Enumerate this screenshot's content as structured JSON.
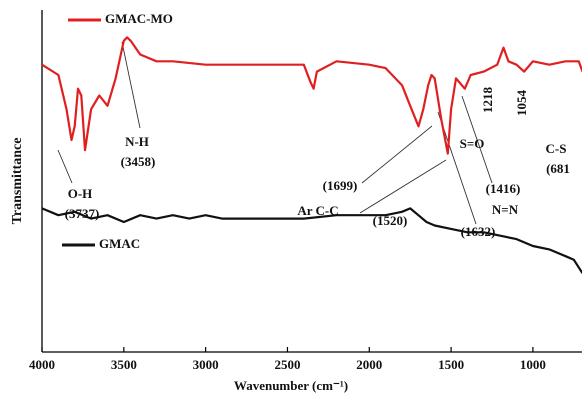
{
  "chart_data": {
    "type": "line",
    "x_label": "Wavenumber (cm⁻¹)",
    "y_label": "Transmittance",
    "xlim": [
      4000,
      700
    ],
    "ylim": [
      0,
      100
    ],
    "xticks": [
      4000,
      3500,
      3000,
      2500,
      2000,
      1500,
      1000
    ],
    "series": [
      {
        "name": "GMAC-MO",
        "color": "#e02020",
        "x": [
          4000,
          3900,
          3850,
          3820,
          3800,
          3780,
          3760,
          3737,
          3700,
          3650,
          3600,
          3550,
          3500,
          3480,
          3458,
          3400,
          3300,
          3200,
          3000,
          2800,
          2500,
          2400,
          2360,
          2340,
          2320,
          2200,
          2000,
          1900,
          1800,
          1750,
          1699,
          1670,
          1640,
          1620,
          1600,
          1560,
          1520,
          1500,
          1470,
          1416,
          1380,
          1300,
          1218,
          1180,
          1150,
          1100,
          1054,
          1000,
          900,
          800,
          720,
          697
        ],
        "values": [
          84,
          81,
          71,
          62,
          66,
          77,
          75,
          59,
          71,
          75,
          72,
          80,
          91,
          92,
          91,
          87,
          85,
          85,
          84,
          84,
          84,
          84,
          79,
          77,
          82,
          85,
          84,
          83,
          78,
          72,
          66,
          71,
          78,
          81,
          80,
          68,
          58,
          71,
          80,
          77,
          81,
          82,
          84,
          89,
          85,
          84,
          82,
          85,
          84,
          85,
          85,
          82
        ]
      },
      {
        "name": "GMAC",
        "color": "#111111",
        "x": [
          4000,
          3900,
          3800,
          3700,
          3600,
          3500,
          3400,
          3300,
          3200,
          3100,
          3000,
          2900,
          2800,
          2600,
          2400,
          2200,
          2000,
          1900,
          1800,
          1750,
          1700,
          1650,
          1600,
          1500,
          1400,
          1300,
          1200,
          1100,
          1000,
          900,
          800,
          750,
          697
        ],
        "values": [
          42,
          40,
          41,
          39,
          40,
          38,
          40,
          39,
          40,
          39,
          40,
          39,
          39,
          39,
          39,
          40,
          40,
          40,
          41,
          42,
          40,
          38,
          37,
          36,
          35,
          35,
          34,
          33,
          31,
          30,
          28,
          27,
          23
        ]
      }
    ],
    "annotations": [
      "N-H",
      "(3458)",
      "O-H",
      "(3737)",
      "(1699)",
      "Ar C-C",
      "(1520)",
      "(1632)",
      "N=N",
      "(1416)",
      "S=O",
      "1218",
      "1054",
      "C-S",
      "(681"
    ]
  }
}
